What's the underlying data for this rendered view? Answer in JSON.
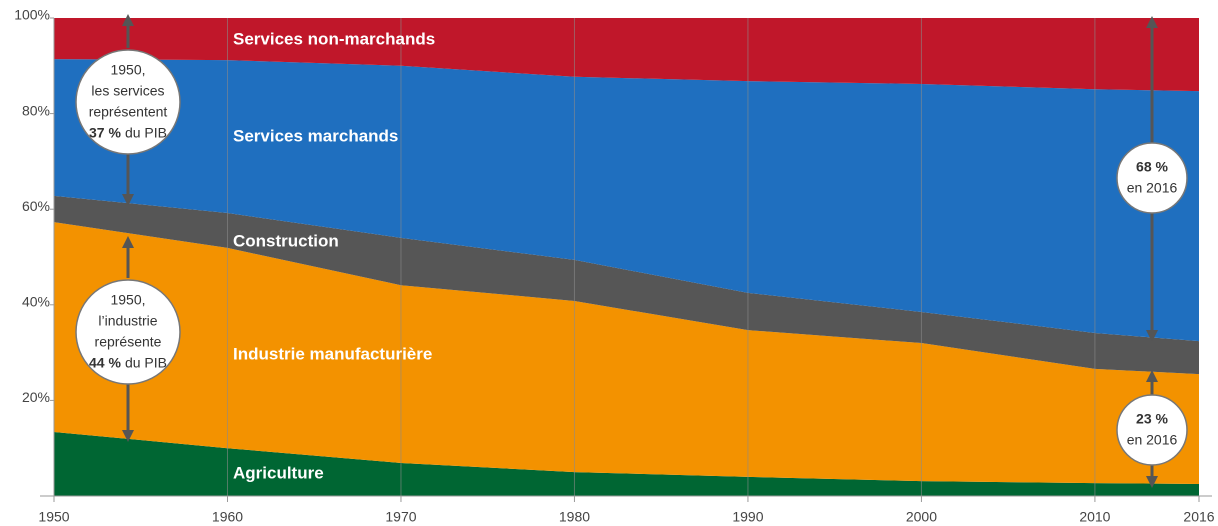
{
  "chart_data": {
    "type": "stacked_area",
    "x": [
      1950,
      1960,
      1970,
      1980,
      1990,
      2000,
      2010,
      2016
    ],
    "series": [
      {
        "name": "Agriculture",
        "color": "#006633",
        "values": [
          13.4,
          10,
          6.9,
          5,
          4,
          3.1,
          2.7,
          2.5
        ]
      },
      {
        "name": "Industrie  manufacturière",
        "color": "#f39200",
        "values": [
          43.9,
          41.9,
          37.2,
          35.8,
          30.7,
          28.9,
          23.9,
          23.0
        ]
      },
      {
        "name": "Construction",
        "color": "#565656",
        "values": [
          5.5,
          7.3,
          9.9,
          8.6,
          7.8,
          6.5,
          7.5,
          6.9
        ]
      },
      {
        "name": "Services  marchands",
        "color": "#1f6fbf",
        "values": [
          28.6,
          32,
          36,
          38.3,
          44.3,
          47.7,
          51,
          52.3
        ]
      },
      {
        "name": "Services  non-marchands",
        "color": "#c0172a",
        "values": [
          8.6,
          8.8,
          10,
          12.3,
          13.2,
          13.8,
          14.9,
          15.3
        ]
      }
    ],
    "xlim": [
      1950,
      2016
    ],
    "xticks": [
      1950,
      1960,
      1970,
      1980,
      1990,
      2000,
      2010,
      2016
    ],
    "ylim": [
      0,
      100
    ],
    "yticks": [
      {
        "value": 20,
        "label": "20%"
      },
      {
        "value": 40,
        "label": "40%"
      },
      {
        "value": 60,
        "label": "60%"
      },
      {
        "value": 80,
        "label": "80%"
      },
      {
        "value": 100,
        "label": "100%"
      }
    ],
    "grid": true,
    "annotations": [
      {
        "lines": [
          [
            {
              "text": "1950,"
            }
          ],
          [
            {
              "text": "les services"
            }
          ],
          [
            {
              "text": "représentent"
            }
          ],
          [
            {
              "text": "37 %",
              "bold": true
            },
            {
              "text": "du PIB"
            }
          ]
        ]
      },
      {
        "lines": [
          [
            {
              "text": "1950,"
            }
          ],
          [
            {
              "text": "l’industrie"
            }
          ],
          [
            {
              "text": "représente"
            }
          ],
          [
            {
              "text": "44 %",
              "bold": true
            },
            {
              "text": "du PIB"
            }
          ]
        ]
      },
      {
        "lines": [
          [
            {
              "text": "68 %",
              "bold": true
            }
          ],
          [
            {
              "text": "en 2016"
            }
          ]
        ]
      },
      {
        "lines": [
          [
            {
              "text": "23 %",
              "bold": true
            }
          ],
          [
            {
              "text": "en 2016"
            }
          ]
        ]
      }
    ]
  }
}
